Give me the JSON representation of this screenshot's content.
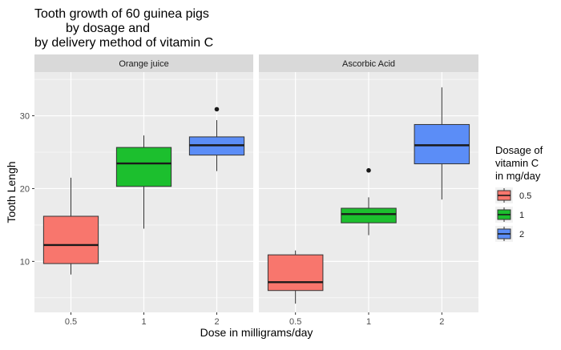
{
  "chart_data": {
    "type": "boxplot",
    "title_lines": [
      "Tooth growth of 60 guinea pigs",
      "by dosage and",
      "by delivery method of vitamin C"
    ],
    "xlabel": "Dose in milligrams/day",
    "ylabel": "Tooth Lengh",
    "ylim": [
      3.0,
      36.0
    ],
    "yticks": [
      10,
      20,
      30
    ],
    "categories": [
      "0.5",
      "1",
      "2"
    ],
    "grid": true,
    "legend": {
      "title_lines": [
        "Dosage of",
        "vitamin C",
        "in mg/day"
      ],
      "position": "right",
      "entries": [
        {
          "label": "0.5",
          "color": "#F8766D"
        },
        {
          "label": "1",
          "color": "#1CBF2E"
        },
        {
          "label": "2",
          "color": "#5B8DF7"
        }
      ]
    },
    "panels": [
      {
        "label": "Orange juice",
        "boxes": [
          {
            "dose": "0.5",
            "whisker_low": 8.2,
            "q1": 9.7,
            "median": 12.25,
            "q3": 16.2,
            "whisker_high": 21.5,
            "outliers": []
          },
          {
            "dose": "1",
            "whisker_low": 14.5,
            "q1": 20.3,
            "median": 23.45,
            "q3": 25.65,
            "whisker_high": 27.3,
            "outliers": []
          },
          {
            "dose": "2",
            "whisker_low": 22.4,
            "q1": 24.6,
            "median": 25.95,
            "q3": 27.1,
            "whisker_high": 29.4,
            "outliers": [
              30.9
            ]
          }
        ]
      },
      {
        "label": "Ascorbic Acid",
        "boxes": [
          {
            "dose": "0.5",
            "whisker_low": 4.2,
            "q1": 6.0,
            "median": 7.15,
            "q3": 10.9,
            "whisker_high": 11.5,
            "outliers": []
          },
          {
            "dose": "1",
            "whisker_low": 13.6,
            "q1": 15.3,
            "median": 16.5,
            "q3": 17.3,
            "whisker_high": 18.8,
            "outliers": [
              22.5
            ]
          },
          {
            "dose": "2",
            "whisker_low": 18.5,
            "q1": 23.4,
            "median": 25.95,
            "q3": 28.8,
            "whisker_high": 33.9,
            "outliers": []
          }
        ]
      }
    ]
  }
}
